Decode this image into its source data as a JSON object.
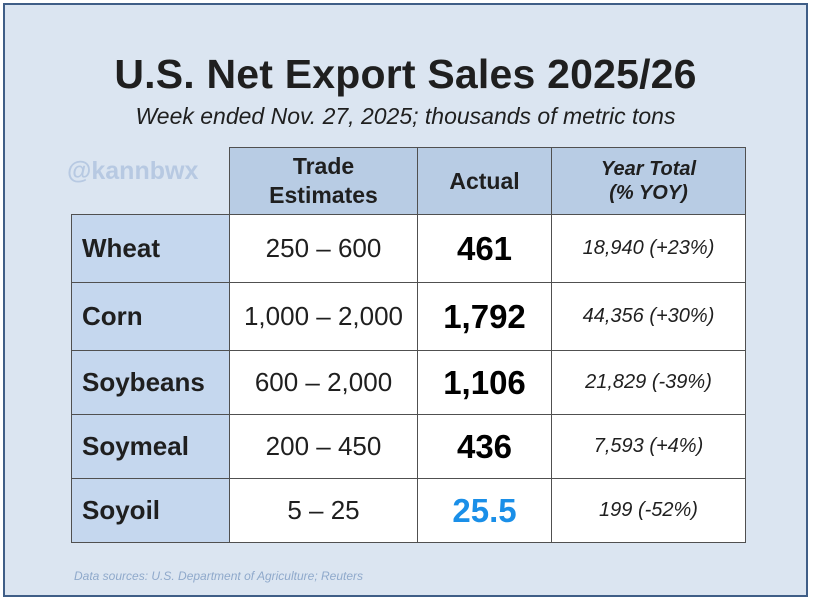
{
  "title": "U.S. Net Export Sales 2025/26",
  "subtitle": "Week ended Nov. 27, 2025; thousands of metric tons",
  "watermark": "@kannbwx",
  "table": {
    "headers": {
      "estimates_line1": "Trade",
      "estimates_line2": "Estimates",
      "actual": "Actual",
      "year_total_line1": "Year Total",
      "year_total_line2": "(% YOY)"
    },
    "rows": [
      {
        "commodity": "Wheat",
        "estimates": "250 – 600",
        "actual": "461",
        "year_total": "18,940 (+23%)"
      },
      {
        "commodity": "Corn",
        "estimates": "1,000 – 2,000",
        "actual": "1,792",
        "year_total": "44,356 (+30%)"
      },
      {
        "commodity": "Soybeans",
        "estimates": "600 – 2,000",
        "actual": "1,106",
        "year_total": "21,829 (-39%)"
      },
      {
        "commodity": "Soymeal",
        "estimates": "200 – 450",
        "actual": "436",
        "year_total": "7,593 (+4%)"
      },
      {
        "commodity": "Soyoil",
        "estimates": "5 – 25",
        "actual": "25.5",
        "year_total": "199 (-52%)"
      }
    ]
  },
  "source": "Data sources: U.S. Department of Agriculture; Reuters",
  "colors": {
    "background": "#dbe5f1",
    "header_fill": "#b8cce4",
    "commodity_fill": "#c5d7ee",
    "highlight_actual": "#1a8fe8",
    "watermark": "#b7c9e2"
  }
}
